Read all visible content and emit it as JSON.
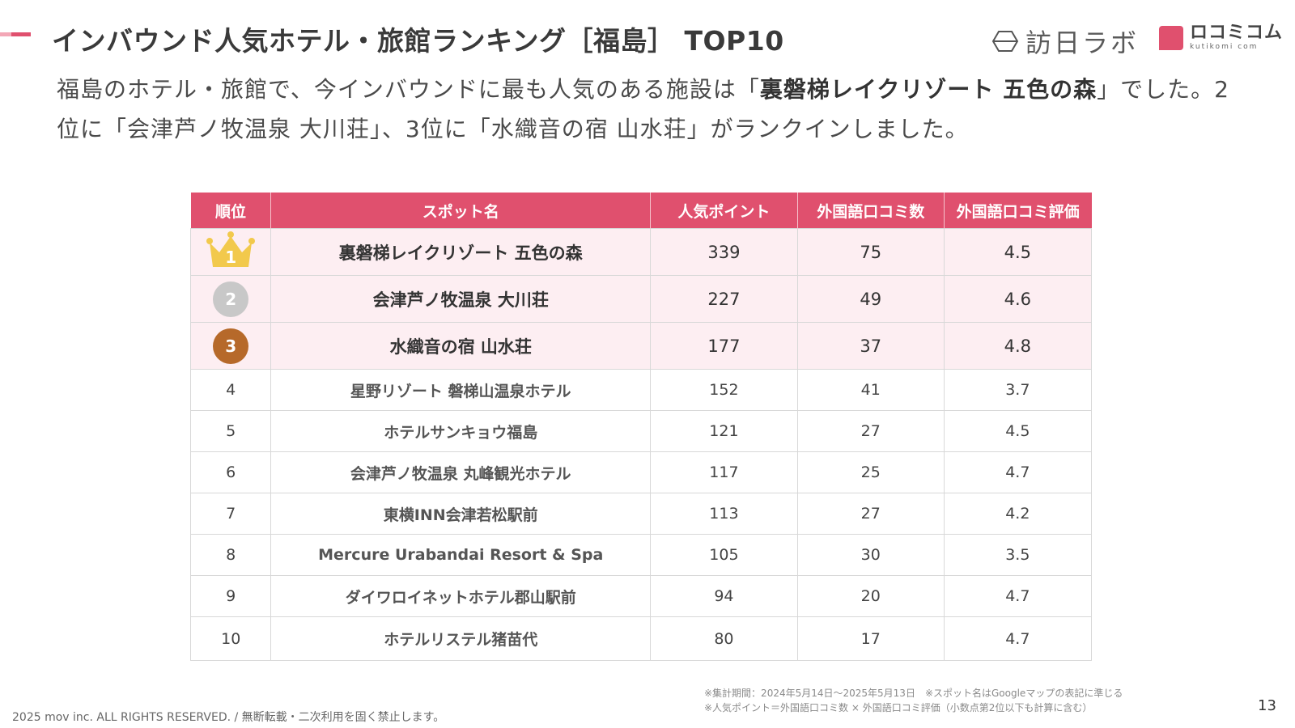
{
  "header": {
    "title": "インバウンド人気ホテル・旅館ランキング［福島］ TOP10",
    "logo_houjin": "訪日ラボ",
    "logo_kuchikomi": "ロコミコム",
    "logo_kuchikomi_sub": "kutikomi com"
  },
  "lead": {
    "part1": "福島のホテル・旅館で、今インバウンドに最も人気のある施設は「",
    "bold": "裏磐梯レイクリゾート 五色の森",
    "part2": "」でした。2位に「会津芦ノ牧温泉 大川荘」、3位に「水織音の宿 山水荘」がランクインしました。"
  },
  "table": {
    "headers": [
      "順位",
      "スポット名",
      "人気ポイント",
      "外国語口コミ数",
      "外国語口コミ評価"
    ],
    "rows": [
      {
        "rank": "1",
        "name": "裏磐梯レイクリゾート 五色の森",
        "points": "339",
        "count": "75",
        "rating": "4.5"
      },
      {
        "rank": "2",
        "name": "会津芦ノ牧温泉 大川荘",
        "points": "227",
        "count": "49",
        "rating": "4.6"
      },
      {
        "rank": "3",
        "name": "水織音の宿 山水荘",
        "points": "177",
        "count": "37",
        "rating": "4.8"
      },
      {
        "rank": "4",
        "name": "星野リゾート 磐梯山温泉ホテル",
        "points": "152",
        "count": "41",
        "rating": "3.7"
      },
      {
        "rank": "5",
        "name": "ホテルサンキョウ福島",
        "points": "121",
        "count": "27",
        "rating": "4.5"
      },
      {
        "rank": "6",
        "name": "会津芦ノ牧温泉 丸峰観光ホテル",
        "points": "117",
        "count": "25",
        "rating": "4.7"
      },
      {
        "rank": "7",
        "name": "東横INN会津若松駅前",
        "points": "113",
        "count": "27",
        "rating": "4.2"
      },
      {
        "rank": "8",
        "name": "Mercure Urabandai Resort & Spa",
        "points": "105",
        "count": "30",
        "rating": "3.5"
      },
      {
        "rank": "9",
        "name": "ダイワロイネットホテル郡山駅前",
        "points": "94",
        "count": "20",
        "rating": "4.7"
      },
      {
        "rank": "10",
        "name": "ホテルリステル猪苗代",
        "points": "80",
        "count": "17",
        "rating": "4.7"
      }
    ]
  },
  "notes": {
    "line1": "※集計期間：2024年5月14日〜2025年5月13日　※スポット名はGoogleマップの表記に準じる",
    "line2": "※人気ポイント＝外国語口コミ数 × 外国語口コミ評価（小数点第2位以下も計算に含む）"
  },
  "footer": {
    "copyright": "2025 mov inc. ALL RIGHTS RESERVED. / 無断転載・二次利用を固く禁止します。",
    "page_number": "13"
  },
  "colors": {
    "accent": "#e0506e",
    "top_row_bg": "#fdeef2",
    "gold": "#f2c94c",
    "silver": "#c8c8c8",
    "bronze": "#b6692a"
  }
}
